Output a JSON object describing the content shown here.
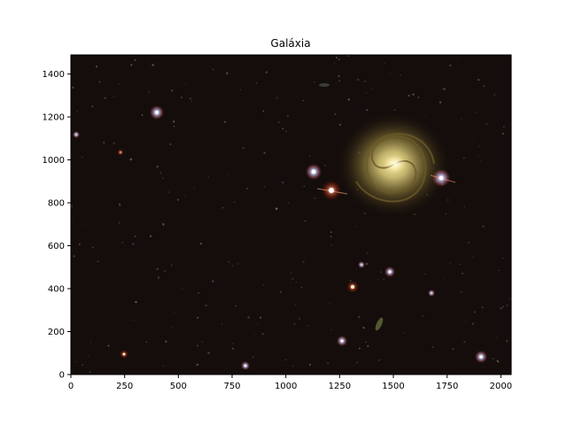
{
  "figure": {
    "title": "Galáxia"
  },
  "axes": {
    "x_ticks": [
      "0",
      "250",
      "500",
      "750",
      "1000",
      "1250",
      "1500",
      "1750",
      "2000"
    ],
    "y_ticks": [
      "0",
      "200",
      "400",
      "600",
      "800",
      "1000",
      "1200",
      "1400"
    ],
    "x_range": [
      0,
      2048
    ],
    "y_range": [
      0,
      1489
    ]
  },
  "image": {
    "subject": "spiral-galaxy",
    "background_color": "#140d0b",
    "galaxy_center": {
      "x": 1505,
      "y": 980
    }
  }
}
